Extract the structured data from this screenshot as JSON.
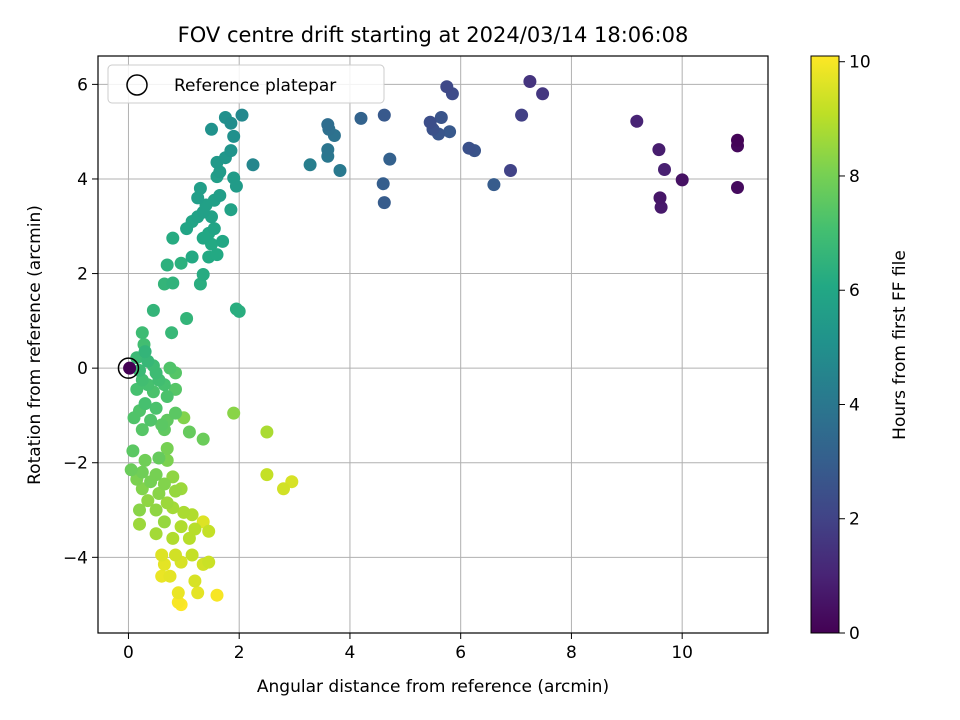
{
  "chart_data": {
    "type": "scatter",
    "title": "FOV centre drift starting at 2024/03/14 18:06:08",
    "xlabel": "Angular distance from reference (arcmin)",
    "ylabel": "Rotation from reference (arcmin)",
    "xlim": [
      -0.55,
      11.55
    ],
    "ylim": [
      -5.6,
      6.6
    ],
    "xticks": [
      "0",
      "2",
      "4",
      "6",
      "8",
      "10"
    ],
    "yticks": [
      "−4",
      "−2",
      "0",
      "2",
      "4",
      "6"
    ],
    "grid": true,
    "legend": {
      "placement": "top-left",
      "entries": [
        "Reference platepar"
      ]
    },
    "reference_point": {
      "x": 0,
      "y": 0
    },
    "colorbar": {
      "label": "Hours from first FF file",
      "colormap": "viridis",
      "range": [
        0,
        10.1
      ],
      "ticks": [
        "0",
        "2",
        "4",
        "6",
        "8",
        "10"
      ]
    },
    "points": [
      {
        "x": 0.02,
        "y": 0.0,
        "t": 0.0
      },
      {
        "x": 11.0,
        "y": 4.82,
        "t": 0.1
      },
      {
        "x": 11.0,
        "y": 4.7,
        "t": 0.2
      },
      {
        "x": 11.0,
        "y": 3.82,
        "t": 0.3
      },
      {
        "x": 10.0,
        "y": 3.98,
        "t": 0.5
      },
      {
        "x": 9.6,
        "y": 3.6,
        "t": 0.6
      },
      {
        "x": 9.62,
        "y": 3.4,
        "t": 0.7
      },
      {
        "x": 9.58,
        "y": 4.62,
        "t": 0.8
      },
      {
        "x": 9.68,
        "y": 4.2,
        "t": 0.9
      },
      {
        "x": 9.18,
        "y": 5.22,
        "t": 1.0
      },
      {
        "x": 7.25,
        "y": 6.06,
        "t": 1.5
      },
      {
        "x": 7.48,
        "y": 5.8,
        "t": 1.6
      },
      {
        "x": 7.1,
        "y": 5.35,
        "t": 1.9
      },
      {
        "x": 6.9,
        "y": 4.18,
        "t": 2.0
      },
      {
        "x": 5.75,
        "y": 5.95,
        "t": 2.2
      },
      {
        "x": 5.85,
        "y": 5.8,
        "t": 2.3
      },
      {
        "x": 6.15,
        "y": 4.65,
        "t": 2.5
      },
      {
        "x": 6.25,
        "y": 4.6,
        "t": 2.6
      },
      {
        "x": 6.6,
        "y": 3.88,
        "t": 2.9
      },
      {
        "x": 5.45,
        "y": 5.2,
        "t": 2.4
      },
      {
        "x": 5.5,
        "y": 5.05,
        "t": 2.5
      },
      {
        "x": 5.65,
        "y": 5.3,
        "t": 2.6
      },
      {
        "x": 5.6,
        "y": 4.95,
        "t": 2.7
      },
      {
        "x": 5.8,
        "y": 5.0,
        "t": 2.8
      },
      {
        "x": 4.62,
        "y": 5.35,
        "t": 2.8
      },
      {
        "x": 4.2,
        "y": 5.28,
        "t": 3.2
      },
      {
        "x": 4.72,
        "y": 4.42,
        "t": 3.1
      },
      {
        "x": 4.6,
        "y": 3.9,
        "t": 3.0
      },
      {
        "x": 4.62,
        "y": 3.5,
        "t": 2.9
      },
      {
        "x": 3.6,
        "y": 5.15,
        "t": 3.6
      },
      {
        "x": 3.62,
        "y": 5.05,
        "t": 3.7
      },
      {
        "x": 3.72,
        "y": 4.92,
        "t": 3.8
      },
      {
        "x": 3.6,
        "y": 4.62,
        "t": 3.9
      },
      {
        "x": 3.6,
        "y": 4.48,
        "t": 4.0
      },
      {
        "x": 3.82,
        "y": 4.18,
        "t": 4.1
      },
      {
        "x": 3.28,
        "y": 4.3,
        "t": 4.3
      },
      {
        "x": 2.25,
        "y": 4.3,
        "t": 4.6
      },
      {
        "x": 2.05,
        "y": 5.35,
        "t": 4.7
      },
      {
        "x": 1.85,
        "y": 5.18,
        "t": 4.9
      },
      {
        "x": 1.75,
        "y": 5.3,
        "t": 5.0
      },
      {
        "x": 1.9,
        "y": 4.9,
        "t": 5.0
      },
      {
        "x": 1.5,
        "y": 5.05,
        "t": 5.1
      },
      {
        "x": 1.85,
        "y": 4.6,
        "t": 5.2
      },
      {
        "x": 1.75,
        "y": 4.45,
        "t": 5.3
      },
      {
        "x": 1.6,
        "y": 4.35,
        "t": 5.4
      },
      {
        "x": 1.65,
        "y": 4.15,
        "t": 5.5
      },
      {
        "x": 1.9,
        "y": 4.02,
        "t": 5.5
      },
      {
        "x": 1.95,
        "y": 3.85,
        "t": 5.5
      },
      {
        "x": 1.6,
        "y": 4.05,
        "t": 5.6
      },
      {
        "x": 1.3,
        "y": 3.8,
        "t": 5.6
      },
      {
        "x": 1.65,
        "y": 3.65,
        "t": 5.6
      },
      {
        "x": 1.55,
        "y": 3.55,
        "t": 5.7
      },
      {
        "x": 1.25,
        "y": 3.6,
        "t": 5.6
      },
      {
        "x": 1.4,
        "y": 3.45,
        "t": 5.7
      },
      {
        "x": 1.35,
        "y": 3.3,
        "t": 5.7
      },
      {
        "x": 1.85,
        "y": 3.35,
        "t": 5.8
      },
      {
        "x": 1.5,
        "y": 3.2,
        "t": 5.8
      },
      {
        "x": 1.25,
        "y": 3.2,
        "t": 5.8
      },
      {
        "x": 1.15,
        "y": 3.1,
        "t": 5.9
      },
      {
        "x": 1.05,
        "y": 2.95,
        "t": 5.9
      },
      {
        "x": 1.55,
        "y": 2.95,
        "t": 5.9
      },
      {
        "x": 1.45,
        "y": 2.85,
        "t": 6.0
      },
      {
        "x": 1.35,
        "y": 2.75,
        "t": 6.0
      },
      {
        "x": 1.7,
        "y": 2.68,
        "t": 6.0
      },
      {
        "x": 1.5,
        "y": 2.62,
        "t": 6.1
      },
      {
        "x": 0.8,
        "y": 2.75,
        "t": 6.2
      },
      {
        "x": 1.15,
        "y": 2.35,
        "t": 6.1
      },
      {
        "x": 1.45,
        "y": 2.35,
        "t": 6.1
      },
      {
        "x": 1.6,
        "y": 2.4,
        "t": 6.1
      },
      {
        "x": 0.95,
        "y": 2.22,
        "t": 6.4
      },
      {
        "x": 0.7,
        "y": 2.18,
        "t": 6.4
      },
      {
        "x": 1.35,
        "y": 1.98,
        "t": 6.2
      },
      {
        "x": 1.3,
        "y": 1.78,
        "t": 6.3
      },
      {
        "x": 0.8,
        "y": 1.8,
        "t": 6.5
      },
      {
        "x": 0.65,
        "y": 1.78,
        "t": 6.6
      },
      {
        "x": 1.95,
        "y": 1.25,
        "t": 6.3
      },
      {
        "x": 2.0,
        "y": 1.2,
        "t": 6.3
      },
      {
        "x": 0.45,
        "y": 1.22,
        "t": 6.6
      },
      {
        "x": 1.05,
        "y": 1.05,
        "t": 6.6
      },
      {
        "x": 0.78,
        "y": 0.75,
        "t": 6.7
      },
      {
        "x": 0.25,
        "y": 0.75,
        "t": 6.9
      },
      {
        "x": 0.28,
        "y": 0.5,
        "t": 7.0
      },
      {
        "x": 0.3,
        "y": 0.35,
        "t": 6.6
      },
      {
        "x": 0.15,
        "y": 0.22,
        "t": 6.8
      },
      {
        "x": 0.35,
        "y": 0.15,
        "t": 6.7
      },
      {
        "x": 0.45,
        "y": 0.05,
        "t": 6.9
      },
      {
        "x": 0.2,
        "y": -0.05,
        "t": 6.8
      },
      {
        "x": 0.5,
        "y": -0.1,
        "t": 6.9
      },
      {
        "x": 0.25,
        "y": -0.25,
        "t": 7.0
      },
      {
        "x": 0.55,
        "y": -0.25,
        "t": 7.0
      },
      {
        "x": 0.35,
        "y": -0.35,
        "t": 7.1
      },
      {
        "x": 0.65,
        "y": -0.35,
        "t": 7.1
      },
      {
        "x": 0.15,
        "y": -0.45,
        "t": 7.1
      },
      {
        "x": 0.45,
        "y": -0.5,
        "t": 7.2
      },
      {
        "x": 0.75,
        "y": 0.0,
        "t": 7.3
      },
      {
        "x": 0.85,
        "y": -0.1,
        "t": 7.4
      },
      {
        "x": 0.85,
        "y": -0.45,
        "t": 7.4
      },
      {
        "x": 0.7,
        "y": -0.6,
        "t": 7.2
      },
      {
        "x": 0.3,
        "y": -0.75,
        "t": 7.1
      },
      {
        "x": 0.5,
        "y": -0.85,
        "t": 7.2
      },
      {
        "x": 0.2,
        "y": -0.9,
        "t": 7.3
      },
      {
        "x": 0.1,
        "y": -1.05,
        "t": 7.3
      },
      {
        "x": 0.4,
        "y": -1.1,
        "t": 7.3
      },
      {
        "x": 0.25,
        "y": -1.3,
        "t": 7.4
      },
      {
        "x": 0.6,
        "y": -1.2,
        "t": 7.5
      },
      {
        "x": 0.85,
        "y": -0.95,
        "t": 7.5
      },
      {
        "x": 0.7,
        "y": -1.1,
        "t": 7.6
      },
      {
        "x": 1.0,
        "y": -1.05,
        "t": 8.2
      },
      {
        "x": 0.65,
        "y": -1.3,
        "t": 7.6
      },
      {
        "x": 1.1,
        "y": -1.35,
        "t": 7.7
      },
      {
        "x": 1.35,
        "y": -1.5,
        "t": 7.8
      },
      {
        "x": 1.9,
        "y": -0.95,
        "t": 8.3
      },
      {
        "x": 0.7,
        "y": -1.7,
        "t": 8.0
      },
      {
        "x": 0.08,
        "y": -1.75,
        "t": 7.5
      },
      {
        "x": 0.55,
        "y": -1.9,
        "t": 7.7
      },
      {
        "x": 0.3,
        "y": -1.95,
        "t": 7.9
      },
      {
        "x": 0.7,
        "y": -1.95,
        "t": 8.1
      },
      {
        "x": 0.05,
        "y": -2.15,
        "t": 7.8
      },
      {
        "x": 0.25,
        "y": -2.2,
        "t": 7.9
      },
      {
        "x": 0.5,
        "y": -2.25,
        "t": 8.0
      },
      {
        "x": 0.15,
        "y": -2.35,
        "t": 8.1
      },
      {
        "x": 0.4,
        "y": -2.4,
        "t": 8.0
      },
      {
        "x": 0.65,
        "y": -2.45,
        "t": 8.2
      },
      {
        "x": 0.8,
        "y": -2.3,
        "t": 8.4
      },
      {
        "x": 0.25,
        "y": -2.55,
        "t": 8.2
      },
      {
        "x": 0.55,
        "y": -2.65,
        "t": 8.3
      },
      {
        "x": 0.85,
        "y": -2.6,
        "t": 8.5
      },
      {
        "x": 0.95,
        "y": -2.55,
        "t": 8.6
      },
      {
        "x": 0.35,
        "y": -2.8,
        "t": 8.4
      },
      {
        "x": 0.7,
        "y": -2.85,
        "t": 8.6
      },
      {
        "x": 2.5,
        "y": -1.35,
        "t": 8.8
      },
      {
        "x": 2.5,
        "y": -2.25,
        "t": 9.2
      },
      {
        "x": 2.8,
        "y": -2.55,
        "t": 9.4
      },
      {
        "x": 2.95,
        "y": -2.4,
        "t": 9.5
      },
      {
        "x": 0.2,
        "y": -3.0,
        "t": 8.3
      },
      {
        "x": 0.5,
        "y": -3.0,
        "t": 8.4
      },
      {
        "x": 0.8,
        "y": -2.95,
        "t": 8.7
      },
      {
        "x": 1.0,
        "y": -3.05,
        "t": 8.8
      },
      {
        "x": 1.15,
        "y": -3.1,
        "t": 8.9
      },
      {
        "x": 0.65,
        "y": -3.25,
        "t": 8.5
      },
      {
        "x": 0.2,
        "y": -3.3,
        "t": 8.6
      },
      {
        "x": 0.95,
        "y": -3.35,
        "t": 8.9
      },
      {
        "x": 1.2,
        "y": -3.4,
        "t": 9.0
      },
      {
        "x": 1.45,
        "y": -3.45,
        "t": 9.2
      },
      {
        "x": 1.35,
        "y": -3.25,
        "t": 9.6
      },
      {
        "x": 0.5,
        "y": -3.5,
        "t": 8.7
      },
      {
        "x": 0.8,
        "y": -3.6,
        "t": 8.9
      },
      {
        "x": 1.1,
        "y": -3.6,
        "t": 9.0
      },
      {
        "x": 0.6,
        "y": -3.95,
        "t": 9.6
      },
      {
        "x": 0.85,
        "y": -3.95,
        "t": 9.4
      },
      {
        "x": 1.15,
        "y": -3.95,
        "t": 9.2
      },
      {
        "x": 0.65,
        "y": -4.15,
        "t": 9.7
      },
      {
        "x": 0.95,
        "y": -4.1,
        "t": 9.5
      },
      {
        "x": 1.45,
        "y": -4.1,
        "t": 9.3
      },
      {
        "x": 1.35,
        "y": -4.15,
        "t": 9.4
      },
      {
        "x": 0.6,
        "y": -4.4,
        "t": 9.8
      },
      {
        "x": 0.75,
        "y": -4.4,
        "t": 9.7
      },
      {
        "x": 1.2,
        "y": -4.5,
        "t": 9.5
      },
      {
        "x": 0.9,
        "y": -4.75,
        "t": 9.8
      },
      {
        "x": 1.25,
        "y": -4.75,
        "t": 9.7
      },
      {
        "x": 1.6,
        "y": -4.8,
        "t": 10.0
      },
      {
        "x": 0.9,
        "y": -4.95,
        "t": 10.0
      },
      {
        "x": 0.95,
        "y": -5.0,
        "t": 10.1
      }
    ]
  }
}
